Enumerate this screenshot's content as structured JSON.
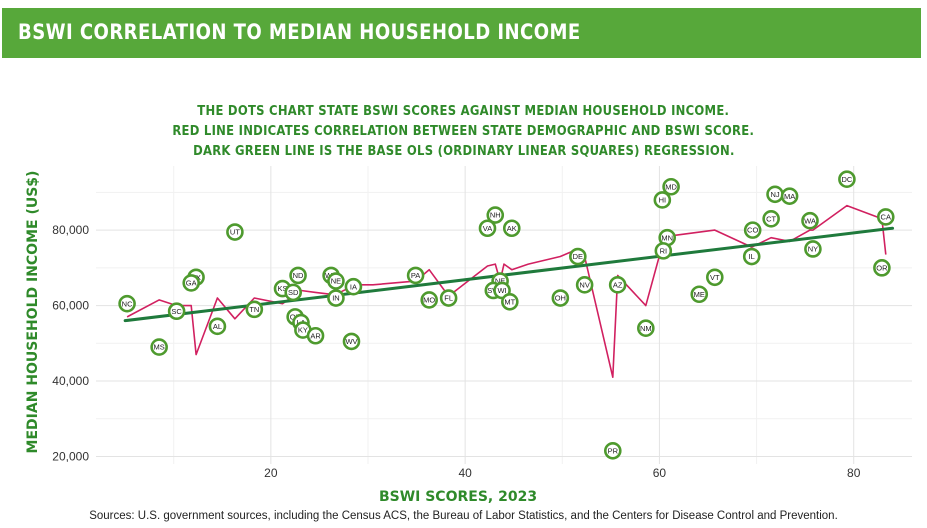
{
  "header": {
    "title": "BSWI CORRELATION TO MEDIAN HOUSEHOLD INCOME"
  },
  "chart_data": {
    "type": "scatter",
    "subtitle_lines": [
      "THE DOTS CHART STATE BSWI SCORES AGAINST MEDIAN HOUSEHOLD INCOME.",
      "RED LINE INDICATES CORRELATION BETWEEN STATE DEMOGRAPHIC AND BSWI SCORE.",
      "DARK GREEN LINE IS THE BASE OLS (ORDINARY LINEAR SQUARES) REGRESSION."
    ],
    "xlabel": "BSWI SCORES, 2023",
    "ylabel": "MEDIAN HOUSEHOLD INCOME (US$)",
    "xlim": [
      2,
      86
    ],
    "ylim": [
      18000,
      97000
    ],
    "x_ticks": [
      20,
      40,
      60,
      80
    ],
    "y_ticks": [
      20000,
      40000,
      60000,
      80000
    ],
    "y_tick_labels": [
      "20,000",
      "40,000",
      "60,000",
      "80,000"
    ],
    "grid": true,
    "colors": {
      "point_ring": "#4e9a2e",
      "ols_line": "#1f7a3c",
      "red_line": "#d12060",
      "title": "#2f8a2a",
      "banner": "#57a83a"
    },
    "points": [
      {
        "label": "NC",
        "x": 5.2,
        "y": 60500
      },
      {
        "label": "MS",
        "x": 8.5,
        "y": 49000
      },
      {
        "label": "SC",
        "x": 10.3,
        "y": 58500
      },
      {
        "label": "TX",
        "x": 12.3,
        "y": 67500
      },
      {
        "label": "GA",
        "x": 11.8,
        "y": 66000
      },
      {
        "label": "AL",
        "x": 14.5,
        "y": 54500
      },
      {
        "label": "UT",
        "x": 16.3,
        "y": 79500
      },
      {
        "label": "TN",
        "x": 18.3,
        "y": 59000
      },
      {
        "label": "KS",
        "x": 21.2,
        "y": 64500
      },
      {
        "label": "ND",
        "x": 22.8,
        "y": 68000
      },
      {
        "label": "SD",
        "x": 22.3,
        "y": 63500
      },
      {
        "label": "OK",
        "x": 22.5,
        "y": 57000
      },
      {
        "label": "LA",
        "x": 23.1,
        "y": 55500
      },
      {
        "label": "KY",
        "x": 23.3,
        "y": 53500
      },
      {
        "label": "AR",
        "x": 24.6,
        "y": 52000
      },
      {
        "label": "WY",
        "x": 26.2,
        "y": 68000
      },
      {
        "label": "NE",
        "x": 26.7,
        "y": 66500
      },
      {
        "label": "IN",
        "x": 26.7,
        "y": 62000
      },
      {
        "label": "IA",
        "x": 28.5,
        "y": 65000
      },
      {
        "label": "WV",
        "x": 28.3,
        "y": 50500
      },
      {
        "label": "PA",
        "x": 34.9,
        "y": 68000
      },
      {
        "label": "MO",
        "x": 36.3,
        "y": 61500
      },
      {
        "label": "FL",
        "x": 38.3,
        "y": 62000
      },
      {
        "label": "NH",
        "x": 43.1,
        "y": 84000
      },
      {
        "label": "VA",
        "x": 42.3,
        "y": 80500
      },
      {
        "label": "AK",
        "x": 44.8,
        "y": 80500
      },
      {
        "label": "NE",
        "x": 43.6,
        "y": 66500
      },
      {
        "label": "SW",
        "x": 42.9,
        "y": 64000
      },
      {
        "label": "WI",
        "x": 43.8,
        "y": 64000
      },
      {
        "label": "MT",
        "x": 44.6,
        "y": 61000
      },
      {
        "label": "OH",
        "x": 49.8,
        "y": 62000
      },
      {
        "label": "DE",
        "x": 51.6,
        "y": 73000
      },
      {
        "label": "NV",
        "x": 52.3,
        "y": 65500
      },
      {
        "label": "AZ",
        "x": 55.7,
        "y": 65500
      },
      {
        "label": "PR",
        "x": 55.2,
        "y": 21500
      },
      {
        "label": "NM",
        "x": 58.6,
        "y": 54000
      },
      {
        "label": "HI",
        "x": 60.3,
        "y": 88000
      },
      {
        "label": "MD",
        "x": 61.2,
        "y": 91500
      },
      {
        "label": "MN",
        "x": 60.8,
        "y": 78000
      },
      {
        "label": "RI",
        "x": 60.4,
        "y": 74500
      },
      {
        "label": "VT",
        "x": 65.7,
        "y": 67500
      },
      {
        "label": "ME",
        "x": 64.1,
        "y": 63000
      },
      {
        "label": "CO",
        "x": 69.6,
        "y": 80000
      },
      {
        "label": "IL",
        "x": 69.5,
        "y": 73000
      },
      {
        "label": "CT",
        "x": 71.5,
        "y": 83000
      },
      {
        "label": "NJ",
        "x": 71.9,
        "y": 89500
      },
      {
        "label": "MA",
        "x": 73.4,
        "y": 89000
      },
      {
        "label": "WA",
        "x": 75.5,
        "y": 82500
      },
      {
        "label": "NY",
        "x": 75.8,
        "y": 75000
      },
      {
        "label": "DC",
        "x": 79.3,
        "y": 93500
      },
      {
        "label": "CA",
        "x": 83.3,
        "y": 83500
      },
      {
        "label": "OR",
        "x": 82.9,
        "y": 70000
      }
    ],
    "ols_line": {
      "x": [
        5,
        84
      ],
      "y": [
        56000,
        80500
      ]
    },
    "red_line": {
      "x": [
        5.2,
        8.5,
        10.3,
        11.8,
        12.3,
        14.5,
        16.3,
        18.3,
        21.2,
        22.3,
        22.8,
        23.1,
        24.6,
        26.2,
        26.7,
        28.3,
        28.5,
        30.5,
        34.9,
        36.3,
        38.3,
        42.3,
        43.1,
        43.6,
        44.0,
        44.8,
        46.5,
        49.8,
        51.6,
        52.3,
        55.2,
        55.7,
        58.6,
        60.3,
        60.8,
        61.2,
        65.7,
        69.5,
        71.5,
        73.4,
        75.5,
        75.8,
        79.3,
        82.9,
        83.3
      ],
      "y": [
        57000,
        61500,
        60000,
        60000,
        47000,
        62000,
        56500,
        62000,
        60500,
        62500,
        64000,
        64000,
        63500,
        63000,
        63000,
        65000,
        65500,
        65500,
        66500,
        69500,
        62500,
        70500,
        71000,
        66500,
        71000,
        69500,
        71000,
        73000,
        75000,
        73000,
        41000,
        68000,
        60000,
        76000,
        76500,
        78500,
        80000,
        75500,
        78000,
        77000,
        80000,
        80000,
        86500,
        83000,
        73500
      ]
    }
  },
  "footer": {
    "source": "Sources: U.S. government sources, including the Census ACS, the Bureau of Labor Statistics, and the Centers for Disease Control and Prevention."
  }
}
